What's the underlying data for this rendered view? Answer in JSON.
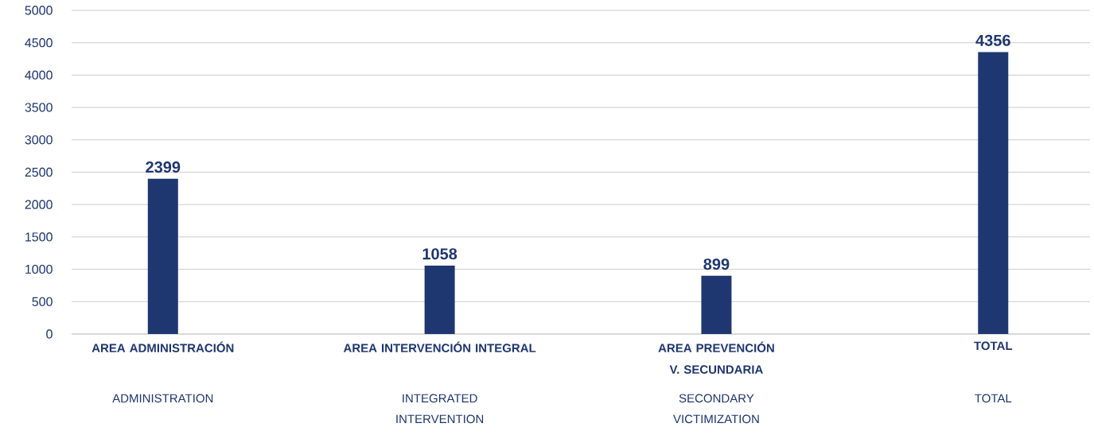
{
  "chart_data": {
    "type": "bar",
    "categories": [
      "AREA ADMINISTRACIÓN",
      "AREA INTERVENCIÓN INTEGRAL",
      "AREA PREVENCIÓN V. SECUNDARIA",
      "TOTAL"
    ],
    "values": [
      2399,
      1058,
      899,
      4356
    ],
    "color": "#1f3770",
    "ylim": [
      0,
      5000
    ],
    "yticks": [
      0,
      500,
      1000,
      1500,
      2000,
      2500,
      3000,
      3500,
      4000,
      4500,
      5000
    ],
    "grid": "y",
    "data_labels": true,
    "annotations": [
      "ADMINISTRATION",
      "INTEGRATED INTERVENTION",
      "SECONDARY VICTIMIZATION",
      "TOTAL"
    ]
  }
}
